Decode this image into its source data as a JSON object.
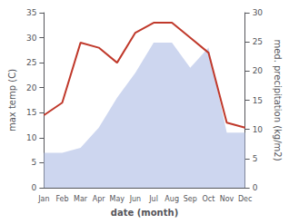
{
  "chart_data": {
    "type": "line",
    "categories": [
      "Jan",
      "Feb",
      "Mar",
      "Apr",
      "May",
      "Jun",
      "Jul",
      "Aug",
      "Sep",
      "Oct",
      "Nov",
      "Dec"
    ],
    "series": [
      {
        "type": "area",
        "color": "#b8c4e8",
        "values": [
          7,
          7,
          8,
          12,
          18,
          23,
          29,
          29,
          24,
          28,
          11,
          11
        ]
      },
      {
        "type": "line",
        "color": "#c0392b",
        "values": [
          14.5,
          17,
          29,
          28,
          25,
          31,
          33,
          33,
          30,
          27,
          13,
          12
        ]
      }
    ],
    "ylim": [
      0,
      35
    ],
    "yticks": [
      0,
      5,
      10,
      15,
      20,
      25,
      30,
      35
    ],
    "y2lim": [
      0,
      30
    ],
    "y2ticks": [
      0,
      5,
      10,
      15,
      20,
      25,
      30
    ],
    "ylabel": "max temp (C)",
    "y2label": "med. precipitation (kg/m2)",
    "xlabel": "date (month)",
    "grid": false
  }
}
